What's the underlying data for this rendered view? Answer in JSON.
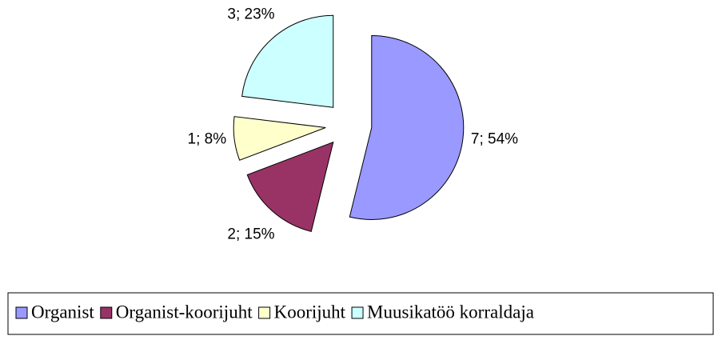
{
  "chart_data": {
    "type": "pie",
    "categories": [
      "Organist",
      "Organist-koorijuht",
      "Koorijuht",
      "Muusikatöö korraldaja"
    ],
    "values": [
      7,
      2,
      1,
      3
    ],
    "value_labels": [
      "7; 54%",
      "2; 15%",
      "1; 8%",
      "3; 23%"
    ],
    "colors": [
      "#9999ff",
      "#993366",
      "#ffffcc",
      "#ccffff"
    ],
    "exploded": true,
    "legend": "bottom"
  }
}
